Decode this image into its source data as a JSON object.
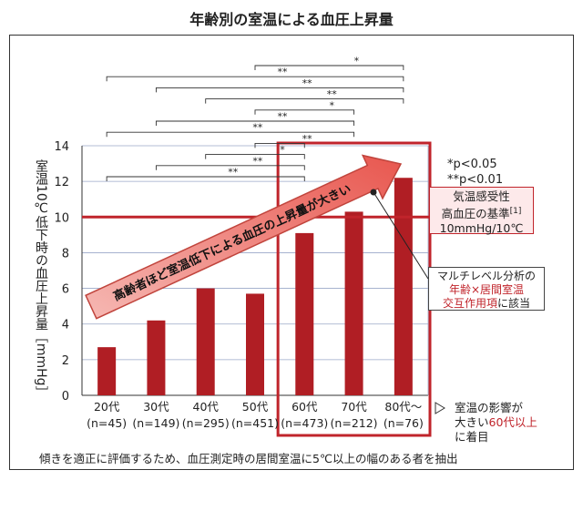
{
  "title": "年齢別の室温による血圧上昇量",
  "chart_data": {
    "type": "bar",
    "categories": [
      "20代",
      "30代",
      "40代",
      "50代",
      "60代",
      "70代",
      "80代～"
    ],
    "sample_sizes": [
      "(n=45)",
      "(n=149)",
      "(n=295)",
      "(n=451)",
      "(n=473)",
      "(n=212)",
      "(n=76)"
    ],
    "values": [
      2.7,
      4.2,
      6.0,
      5.7,
      9.1,
      10.3,
      12.2
    ],
    "ylabel": "室温10℃低下時の血圧上昇量［mmHg］",
    "ylim": [
      0,
      14
    ],
    "yticks": [
      "0",
      "2",
      "4",
      "6",
      "8",
      "10",
      "12",
      "14"
    ],
    "reference_line": 10,
    "bar_color": "#b01e24",
    "grid": true,
    "significance_brackets": [
      {
        "from": 3,
        "to": 6,
        "mark": "*"
      },
      {
        "from": 0,
        "to": 6,
        "mark": "**"
      },
      {
        "from": 1,
        "to": 6,
        "mark": "**"
      },
      {
        "from": 2,
        "to": 6,
        "mark": "**"
      },
      {
        "from": 3,
        "to": 5,
        "mark": "*"
      },
      {
        "from": 1,
        "to": 5,
        "mark": "**"
      },
      {
        "from": 0,
        "to": 5,
        "mark": "**"
      },
      {
        "from": 3,
        "to": 4,
        "mark": "**"
      },
      {
        "from": 2,
        "to": 4,
        "mark": "*"
      },
      {
        "from": 1,
        "to": 4,
        "mark": "**"
      },
      {
        "from": 0,
        "to": 4,
        "mark": "**"
      }
    ],
    "arrow_label": "高齢者ほど室温低下による血圧の上昇量が大きい"
  },
  "legend": {
    "p05": "*p<0.05",
    "p01": "**p<0.01"
  },
  "reference": {
    "line1": "気温感受性",
    "line2_prefix": "高血圧の基準",
    "line2_sup": "[1]",
    "line3": "10mmHg/10℃"
  },
  "multilevel": {
    "line1": "マルチレベル分析の",
    "line2": "年齢×居間室温",
    "line3_red": "交互作用項",
    "line3_rest": "に該当"
  },
  "focus_note": {
    "line1": "室温の影響が",
    "line2_prefix": "大きい",
    "line2_red": "60代以上",
    "line3": "に着目"
  },
  "footer": "傾きを適正に評価するため、血圧測定時の居間室温に5℃以上の幅のある者を抽出",
  "colors": {
    "accent": "#c0242b",
    "bar": "#b01e24",
    "highlight_fill": "#fde9ea"
  }
}
